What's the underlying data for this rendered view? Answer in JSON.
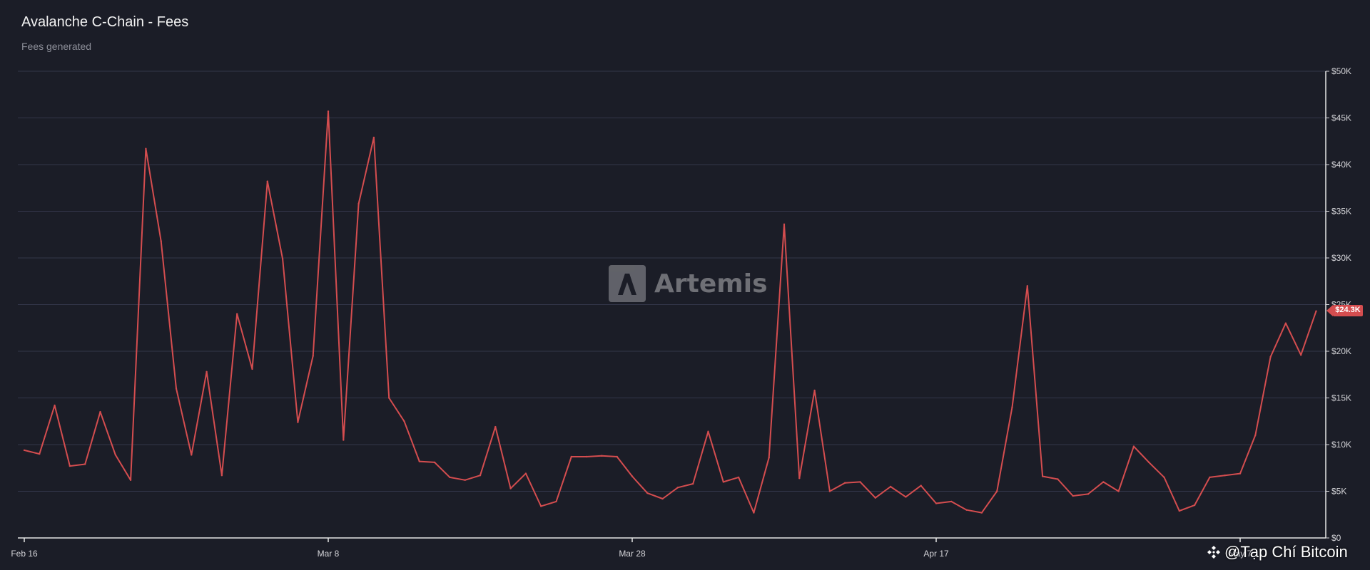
{
  "header": {
    "title": "Avalanche C-Chain - Fees",
    "subtitle": "Fees generated"
  },
  "watermark": {
    "text": "Artemis",
    "icon": "artemis-logo-icon"
  },
  "current_value_tag": "$24.3K",
  "credit": {
    "text": "@Tạp Chí Bitcoin",
    "icon": "binance-logo-icon"
  },
  "colors": {
    "background": "#1b1d27",
    "line": "#d44d4f",
    "grid": "#33364a"
  },
  "chart_data": {
    "type": "line",
    "title": "Avalanche C-Chain - Fees",
    "subtitle": "Fees generated",
    "x_start": "2024-02-16",
    "x_tick_labels": [
      "Feb 16",
      "Mar 8",
      "Mar 28",
      "Apr 17",
      "May 7"
    ],
    "x_tick_days": [
      0,
      20,
      40,
      60,
      80
    ],
    "y_tick_labels": [
      "$0",
      "$5K",
      "$10K",
      "$15K",
      "$20K",
      "$25K",
      "$30K",
      "$35K",
      "$40K",
      "$45K",
      "$50K"
    ],
    "ylim": [
      0,
      50000
    ],
    "y_axis_position": "right",
    "grid": true,
    "series": [
      {
        "values": [
          9400,
          9000,
          14200,
          7700,
          7900,
          13500,
          8900,
          6200,
          41700,
          31800,
          16000,
          8900,
          17800,
          6700,
          24000,
          18100,
          38200,
          29900,
          12400,
          19500,
          45700,
          10500,
          35800,
          42900,
          15000,
          12500,
          8200,
          8100,
          6500,
          6200,
          6700,
          11900,
          5300,
          6900,
          3400,
          3900,
          8700,
          8700,
          8800,
          8700,
          6600,
          4800,
          4200,
          5400,
          5800,
          11400,
          6000,
          6500,
          2700,
          8600,
          33600,
          6400,
          15800,
          5000,
          5900,
          6000,
          4300,
          5500,
          4400,
          5600,
          3700,
          3900,
          3000,
          2700,
          5000,
          14000,
          27000,
          6600,
          6300,
          4500,
          4700,
          6000,
          5000,
          9800,
          8100,
          6500,
          2900,
          3500,
          6500,
          6700,
          6900,
          11000,
          19400,
          23000,
          19600,
          24300
        ]
      }
    ]
  }
}
